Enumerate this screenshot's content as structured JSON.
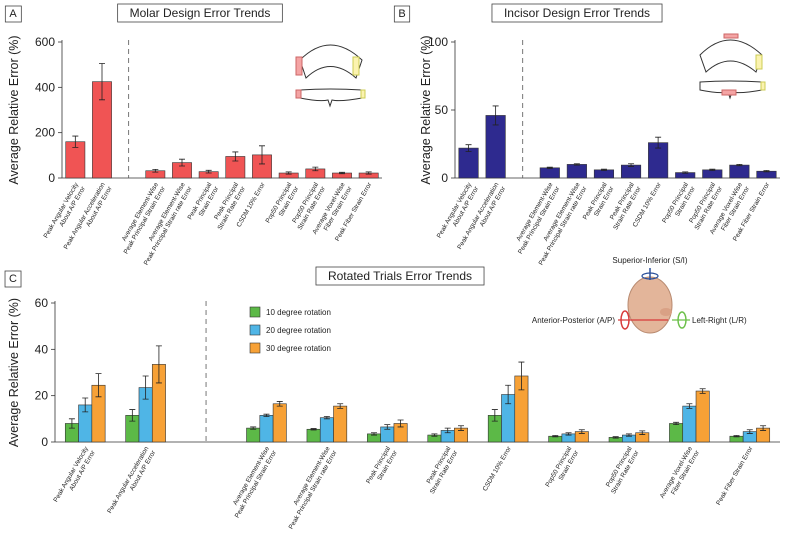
{
  "chart_data": [
    {
      "type": "bar",
      "panel_label": "A",
      "title": "Molar Design Error Trends",
      "y_label": "Average Relative Error (%)",
      "categories": [
        [
          "Peak Angular Velocity",
          "About A/P Error"
        ],
        [
          "Peak Angular Acceleration",
          "About A/P Error"
        ],
        [
          "Average Element-Wise",
          "Peak Principal Strain Error"
        ],
        [
          "Average Element-Wise",
          "Peak Principal Strain rate Error"
        ],
        [
          "Peak Principal",
          "Strain Error"
        ],
        [
          "Peak Principal",
          "Strain Rate Error"
        ],
        [
          "CSDM 10% Error"
        ],
        [
          "Pop50 Principal",
          "Strain Error"
        ],
        [
          "Pop50 Principal",
          "Strain Rate Error"
        ],
        [
          "Average Voxel-Wise",
          "Fiber Strain Error"
        ],
        [
          "Peak Fiber Strain Error"
        ]
      ],
      "series": [
        {
          "color": "#f05454",
          "values": [
            160,
            425,
            32,
            68,
            28,
            95,
            102,
            22,
            40,
            22,
            22
          ],
          "errors": [
            25,
            80,
            6,
            15,
            6,
            20,
            40,
            5,
            8,
            3,
            5
          ]
        }
      ],
      "ylim": [
        0,
        600
      ],
      "yticks": [
        0,
        200,
        400,
        600
      ]
    },
    {
      "type": "bar",
      "panel_label": "B",
      "title": "Incisor Design Error Trends",
      "y_label": "Average Relative Error (%)",
      "categories": [
        [
          "Peak Angular Velocity",
          "About A/P Error"
        ],
        [
          "Peak Angular Acceleration",
          "About A/P Error"
        ],
        [
          "Average Element-Wise",
          "Peak Principal Strain Error"
        ],
        [
          "Average Element-Wise",
          "Peak Principal Strain rate Error"
        ],
        [
          "Peak Principal",
          "Strain Error"
        ],
        [
          "Peak Principal",
          "Strain Rate Error"
        ],
        [
          "CSDM 10% Error"
        ],
        [
          "Pop50 Principal",
          "Strain Error"
        ],
        [
          "Pop50 Principal",
          "Strain Rate Error"
        ],
        [
          "Average Voxel-Wise",
          "Fiber Strain Error"
        ],
        [
          "Peak Fiber Strain Error"
        ]
      ],
      "series": [
        {
          "color": "#2e2a8f",
          "values": [
            22,
            46,
            7.5,
            10,
            6,
            9.5,
            26,
            4,
            6,
            9.5,
            5
          ],
          "errors": [
            2.5,
            7,
            0.5,
            0.5,
            0.5,
            1,
            4,
            0.5,
            0.5,
            0.5,
            0.5
          ]
        }
      ],
      "ylim": [
        0,
        100
      ],
      "yticks": [
        0,
        50,
        100
      ]
    },
    {
      "type": "bar",
      "panel_label": "C",
      "title": "Rotated Trials Error Trends",
      "y_label": "Average Relative Error (%)",
      "annotations": [
        "Superior-Inferior (S/I)",
        "Anterior-Posterior (A/P)",
        "Left-Right (L/R)"
      ],
      "categories": [
        [
          "Peak Angular Velocity",
          "About A/P Error"
        ],
        [
          "Peak Angular Acceleration",
          "About A/P Error"
        ],
        [
          "Average Element-Wise",
          "Peak Principal Strain Error"
        ],
        [
          "Average Element-Wise",
          "Peak Principal Strain rate Error"
        ],
        [
          "Peak Principal",
          "Strain Error"
        ],
        [
          "Peak Principal",
          "Strain Rate Error"
        ],
        [
          "CSDM 10% Error"
        ],
        [
          "Pop50 Principal",
          "Strain Error"
        ],
        [
          "Pop50 Principal",
          "Strain Rate Error"
        ],
        [
          "Average Voxel-Wise",
          "Fiber Strain Error"
        ],
        [
          "Peak Fiber Strain Error"
        ]
      ],
      "series": [
        {
          "name": "10 degree rotation",
          "color": "#5cb947",
          "values": [
            8,
            11.5,
            6,
            5.5,
            3.5,
            3,
            11.5,
            2.5,
            2,
            8,
            2.5
          ],
          "errors": [
            2,
            2.5,
            0.5,
            0.3,
            0.5,
            0.5,
            2.5,
            0.3,
            0.3,
            0.5,
            0.3
          ]
        },
        {
          "name": "20 degree rotation",
          "color": "#4fb5e6",
          "values": [
            16,
            23.5,
            11.5,
            10.5,
            6.5,
            5,
            20.5,
            3.5,
            3,
            15.5,
            4.5
          ],
          "errors": [
            3,
            5,
            0.5,
            0.5,
            1,
            1,
            4,
            0.5,
            0.5,
            1,
            0.8
          ]
        },
        {
          "name": "30 degree rotation",
          "color": "#f7a136",
          "values": [
            24.5,
            33.5,
            16.5,
            15.5,
            8,
            6,
            28.5,
            4.5,
            4,
            22,
            6
          ],
          "errors": [
            5,
            8,
            1,
            1,
            1.5,
            1,
            6,
            0.8,
            0.8,
            1,
            1
          ]
        }
      ],
      "ylim": [
        0,
        60
      ],
      "yticks": [
        0,
        20,
        40,
        60
      ]
    }
  ]
}
